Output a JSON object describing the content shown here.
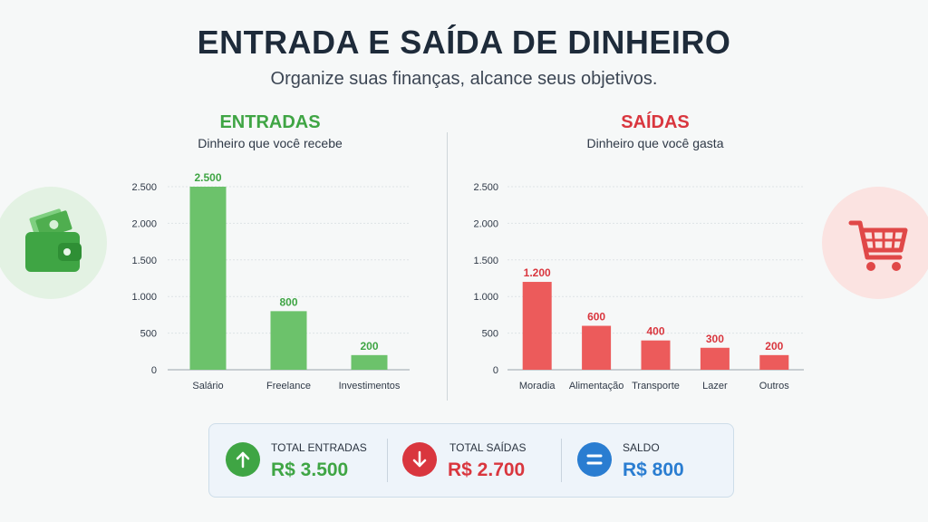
{
  "header": {
    "title": "ENTRADA E SAÍDA DE DINHEIRO",
    "subtitle": "Organize suas finanças, alcance seus objetivos."
  },
  "colors": {
    "income": "#3fa544",
    "income_bar": "#6cc26b",
    "expense": "#d9363e",
    "expense_bar": "#ec5b5b",
    "balance": "#2a7dd1"
  },
  "icons": {
    "income_side": "wallet-icon",
    "expense_side": "shopping-cart-icon",
    "total_in": "arrow-up-icon",
    "total_out": "arrow-down-icon",
    "balance": "equals-icon"
  },
  "income": {
    "title": "ENTRADAS",
    "subtitle": "Dinheiro que você recebe"
  },
  "expenses": {
    "title": "SAÍDAS",
    "subtitle": "Dinheiro que você gasta"
  },
  "chart_data": [
    {
      "type": "bar",
      "title": "ENTRADAS",
      "categories": [
        "Salário",
        "Freelance",
        "Investimentos"
      ],
      "values": [
        2500,
        800,
        200
      ],
      "value_labels": [
        "2.500",
        "800",
        "200"
      ],
      "yticks": [
        0,
        500,
        1000,
        1500,
        2000,
        2500
      ],
      "ytick_labels": [
        "0",
        "500",
        "1.000",
        "1.500",
        "2.000",
        "2.500"
      ],
      "ylim": [
        0,
        2500
      ],
      "grid": true,
      "color": "#6cc26b",
      "label_color": "#3fa544"
    },
    {
      "type": "bar",
      "title": "SAÍDAS",
      "categories": [
        "Moradia",
        "Alimentação",
        "Transporte",
        "Lazer",
        "Outros"
      ],
      "values": [
        1200,
        600,
        400,
        300,
        200
      ],
      "value_labels": [
        "1.200",
        "600",
        "400",
        "300",
        "200"
      ],
      "yticks": [
        0,
        500,
        1000,
        1500,
        2000,
        2500
      ],
      "ytick_labels": [
        "0",
        "500",
        "1.000",
        "1.500",
        "2.000",
        "2.500"
      ],
      "ylim": [
        0,
        2500
      ],
      "grid": true,
      "color": "#ec5b5b",
      "label_color": "#d9363e"
    }
  ],
  "summary": {
    "total_in": {
      "label": "TOTAL ENTRADAS",
      "value": "R$ 3.500"
    },
    "total_out": {
      "label": "TOTAL SAÍDAS",
      "value": "R$ 2.700"
    },
    "balance": {
      "label": "SALDO",
      "value": "R$ 800"
    }
  }
}
